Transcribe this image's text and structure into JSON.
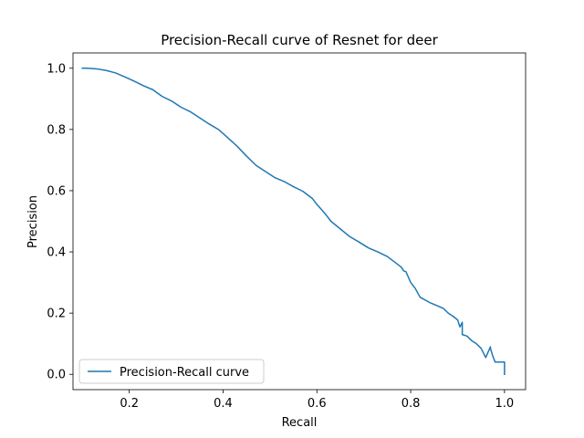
{
  "chart_data": {
    "type": "line",
    "title": "Precision-Recall curve of Resnet for deer",
    "xlabel": "Recall",
    "ylabel": "Precision",
    "xlim": [
      0.08,
      1.045
    ],
    "ylim": [
      -0.05,
      1.05
    ],
    "xticks": [
      0.2,
      0.4,
      0.6,
      0.8,
      1.0
    ],
    "xtick_labels": [
      "0.2",
      "0.4",
      "0.6",
      "0.8",
      "1.0"
    ],
    "yticks": [
      0.0,
      0.2,
      0.4,
      0.6,
      0.8,
      1.0
    ],
    "ytick_labels": [
      "0.0",
      "0.2",
      "0.4",
      "0.6",
      "0.8",
      "1.0"
    ],
    "grid": false,
    "legend_position": "lower-left",
    "series": [
      {
        "name": "Precision-Recall curve",
        "color": "#1f77b4",
        "x": [
          0.1,
          0.11,
          0.13,
          0.15,
          0.17,
          0.19,
          0.21,
          0.23,
          0.25,
          0.27,
          0.29,
          0.31,
          0.33,
          0.35,
          0.37,
          0.39,
          0.41,
          0.43,
          0.45,
          0.47,
          0.49,
          0.51,
          0.53,
          0.55,
          0.57,
          0.59,
          0.6,
          0.61,
          0.62,
          0.63,
          0.65,
          0.67,
          0.69,
          0.71,
          0.73,
          0.75,
          0.77,
          0.78,
          0.785,
          0.79,
          0.8,
          0.81,
          0.82,
          0.84,
          0.86,
          0.87,
          0.88,
          0.89,
          0.9,
          0.905,
          0.91,
          0.91,
          0.92,
          0.93,
          0.94,
          0.95,
          0.96,
          0.97,
          0.97,
          0.975,
          0.98,
          0.98,
          1.0,
          1.0
        ],
        "y": [
          1.0,
          1.0,
          0.998,
          0.993,
          0.985,
          0.972,
          0.958,
          0.943,
          0.93,
          0.908,
          0.893,
          0.873,
          0.858,
          0.838,
          0.818,
          0.8,
          0.773,
          0.745,
          0.713,
          0.683,
          0.663,
          0.643,
          0.63,
          0.613,
          0.598,
          0.575,
          0.555,
          0.538,
          0.52,
          0.5,
          0.475,
          0.45,
          0.432,
          0.413,
          0.4,
          0.385,
          0.362,
          0.35,
          0.338,
          0.335,
          0.3,
          0.28,
          0.252,
          0.235,
          0.222,
          0.215,
          0.2,
          0.19,
          0.178,
          0.155,
          0.17,
          0.13,
          0.125,
          0.11,
          0.1,
          0.085,
          0.055,
          0.09,
          0.085,
          0.06,
          0.04,
          0.04,
          0.04,
          0.0
        ]
      }
    ]
  }
}
